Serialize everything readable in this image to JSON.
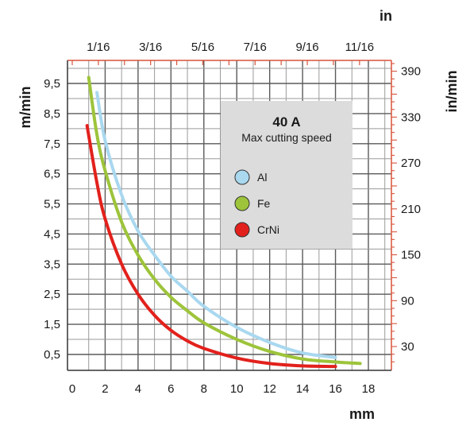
{
  "chart_data": {
    "type": "line",
    "title": "40 A",
    "subtitle": "Max cutting speed",
    "x_unit_bottom": "mm",
    "x_unit_top": "in",
    "y_unit_left": "m/min",
    "y_unit_right": "in/min",
    "x_ticks_bottom": [
      "0",
      "2",
      "4",
      "6",
      "8",
      "10",
      "12",
      "14",
      "16",
      "18"
    ],
    "x_ticks_top": [
      "1/16",
      "3/16",
      "5/16",
      "7/16",
      "9/16",
      "11/16"
    ],
    "y_ticks_left": [
      "0,5",
      "1,5",
      "2,5",
      "3,5",
      "4,5",
      "5,5",
      "6,5",
      "7,5",
      "8,5",
      "9,5"
    ],
    "y_ticks_right": [
      "30",
      "90",
      "150",
      "210",
      "270",
      "330",
      "390"
    ],
    "xlim": [
      0,
      19
    ],
    "ylim": [
      0,
      10.3
    ],
    "grid": true,
    "legend_position": "upper-right",
    "series": [
      {
        "name": "Al",
        "color": "#a9d8ef",
        "x": [
          1.5,
          2,
          3,
          4,
          5,
          6,
          7,
          8,
          10,
          12,
          14,
          16
        ],
        "y": [
          9.2,
          7.6,
          5.8,
          4.6,
          3.8,
          3.1,
          2.6,
          2.1,
          1.4,
          0.9,
          0.55,
          0.4
        ]
      },
      {
        "name": "Fe",
        "color": "#9dc43a",
        "x": [
          1,
          1.5,
          2,
          3,
          4,
          5,
          6,
          7,
          8,
          10,
          12,
          14,
          16,
          17.5
        ],
        "y": [
          9.7,
          7.8,
          6.6,
          4.9,
          3.8,
          3.0,
          2.4,
          1.95,
          1.55,
          1.0,
          0.6,
          0.35,
          0.25,
          0.2
        ]
      },
      {
        "name": "CrNi",
        "color": "#e2211c",
        "x": [
          0.9,
          1.5,
          2,
          3,
          4,
          5,
          6,
          7,
          8,
          10,
          12,
          14,
          16
        ],
        "y": [
          8.1,
          6.2,
          5.0,
          3.5,
          2.5,
          1.8,
          1.3,
          0.95,
          0.7,
          0.38,
          0.2,
          0.12,
          0.1
        ]
      }
    ]
  }
}
